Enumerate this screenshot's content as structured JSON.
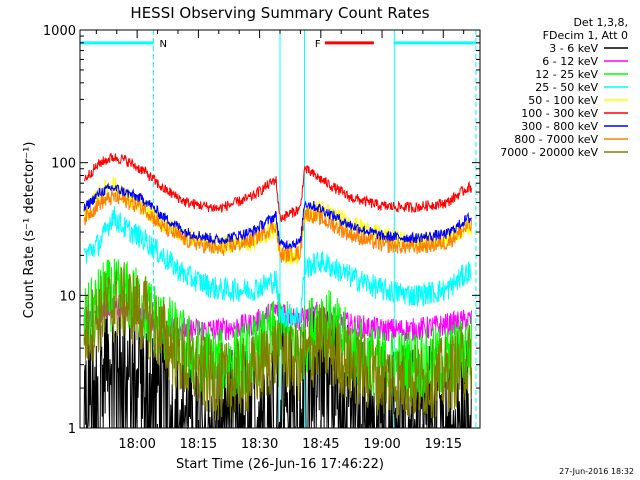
{
  "chart_data": {
    "type": "line",
    "title": "HESSI Observing Summary Count Rates",
    "xlabel": "Start Time (26-Jun-16 17:46:22)",
    "ylabel": "Count Rate (s⁻¹ detector⁻¹)",
    "yscale": "log",
    "ylim": [
      1,
      1000
    ],
    "xlim": [
      "17:46",
      "19:24"
    ],
    "y_ticks": [
      "1",
      "10",
      "100",
      "1000"
    ],
    "x_ticks": [
      "18:00",
      "18:15",
      "18:30",
      "18:45",
      "19:00",
      "19:15"
    ],
    "legend_header": [
      "Det 1,3,8,",
      "FDecim 1, Att 0"
    ],
    "legend_position": "right",
    "series": [
      {
        "name": "3 - 6 keV",
        "color": "#000000",
        "x": [
          "17:47",
          "17:52",
          "17:57",
          "18:02",
          "18:06",
          "18:12",
          "18:20",
          "18:28",
          "18:35",
          "18:40",
          "18:45",
          "18:52",
          "19:00",
          "19:08",
          "19:16",
          "19:21"
        ],
        "values": [
          2,
          3.5,
          4,
          3,
          2,
          1.5,
          1.3,
          1.8,
          2.5,
          2.2,
          3.5,
          2.2,
          1.6,
          1.4,
          1.6,
          2
        ]
      },
      {
        "name": "6 - 12 keV",
        "color": "#ff00ff",
        "x": [
          "17:47",
          "17:52",
          "17:57",
          "18:02",
          "18:06",
          "18:12",
          "18:20",
          "18:28",
          "18:35",
          "18:40",
          "18:45",
          "18:52",
          "19:00",
          "19:08",
          "19:16",
          "19:21"
        ],
        "values": [
          6,
          8,
          8.5,
          7,
          6,
          5.5,
          5.5,
          6,
          8,
          6.5,
          7.5,
          6,
          5.5,
          5.5,
          6,
          6.5
        ]
      },
      {
        "name": "12 - 25 keV",
        "color": "#00ff00",
        "x": [
          "17:47",
          "17:52",
          "17:57",
          "18:02",
          "18:06",
          "18:12",
          "18:20",
          "18:28",
          "18:35",
          "18:40",
          "18:45",
          "18:52",
          "19:00",
          "19:08",
          "19:16",
          "19:21"
        ],
        "values": [
          6,
          10,
          10,
          8,
          6,
          4,
          3,
          3.5,
          5.5,
          4,
          7,
          4,
          3,
          3,
          3.2,
          4
        ]
      },
      {
        "name": "25 - 50 keV",
        "color": "#00ffff",
        "x": [
          "17:47",
          "17:51",
          "17:54",
          "17:57",
          "18:02",
          "18:06",
          "18:12",
          "18:20",
          "18:28",
          "18:34",
          "18:35",
          "18:40",
          "18:41",
          "18:45",
          "18:52",
          "19:00",
          "19:08",
          "19:16",
          "19:21"
        ],
        "values": [
          20,
          25,
          40,
          32,
          26,
          20,
          14,
          11,
          11,
          13,
          7,
          7,
          16,
          18,
          14,
          11,
          10,
          11,
          15
        ]
      },
      {
        "name": "50 - 100 keV",
        "color": "#ffff00",
        "x": [
          "17:47",
          "17:51",
          "17:54",
          "17:57",
          "18:02",
          "18:06",
          "18:12",
          "18:20",
          "18:28",
          "18:34",
          "18:35",
          "18:40",
          "18:41",
          "18:45",
          "18:52",
          "19:00",
          "19:08",
          "19:16",
          "19:21"
        ],
        "values": [
          40,
          60,
          70,
          55,
          45,
          35,
          28,
          24,
          25,
          32,
          20,
          20,
          40,
          45,
          35,
          28,
          25,
          27,
          33
        ]
      },
      {
        "name": "100 - 300 keV",
        "color": "#ff0000",
        "x": [
          "17:47",
          "17:51",
          "17:54",
          "17:57",
          "18:02",
          "18:06",
          "18:12",
          "18:20",
          "18:28",
          "18:34",
          "18:35",
          "18:40",
          "18:41",
          "18:45",
          "18:52",
          "19:00",
          "19:08",
          "19:16",
          "19:21"
        ],
        "values": [
          75,
          100,
          110,
          105,
          85,
          65,
          50,
          45,
          55,
          75,
          38,
          45,
          90,
          75,
          55,
          47,
          46,
          50,
          65
        ]
      },
      {
        "name": "300 - 800 keV",
        "color": "#0000ff",
        "x": [
          "17:47",
          "17:51",
          "17:54",
          "17:57",
          "18:02",
          "18:06",
          "18:12",
          "18:20",
          "18:28",
          "18:34",
          "18:35",
          "18:40",
          "18:41",
          "18:45",
          "18:52",
          "19:00",
          "19:08",
          "19:16",
          "19:21"
        ],
        "values": [
          45,
          60,
          65,
          60,
          52,
          40,
          30,
          26,
          30,
          40,
          24,
          25,
          50,
          45,
          34,
          28,
          27,
          29,
          38
        ]
      },
      {
        "name": "800 - 7000 keV",
        "color": "#ff8000",
        "x": [
          "17:47",
          "17:51",
          "17:54",
          "17:57",
          "18:02",
          "18:06",
          "18:12",
          "18:20",
          "18:28",
          "18:34",
          "18:35",
          "18:40",
          "18:41",
          "18:45",
          "18:52",
          "19:00",
          "19:08",
          "19:16",
          "19:21"
        ],
        "values": [
          38,
          50,
          55,
          52,
          45,
          33,
          26,
          22,
          26,
          34,
          20,
          21,
          42,
          38,
          29,
          24,
          23,
          25,
          33
        ]
      },
      {
        "name": "7000 - 20000 keV",
        "color": "#808000",
        "x": [
          "17:47",
          "17:52",
          "17:57",
          "18:02",
          "18:06",
          "18:12",
          "18:20",
          "18:28",
          "18:35",
          "18:40",
          "18:45",
          "18:52",
          "19:00",
          "19:08",
          "19:16",
          "19:21"
        ],
        "values": [
          5,
          8,
          9,
          7,
          5,
          3,
          2.2,
          2.5,
          4,
          3,
          4.5,
          3,
          2.4,
          2.2,
          2.5,
          3.2
        ]
      }
    ],
    "markers": {
      "N": {
        "label": "N",
        "color": "#00ffff",
        "value": 800,
        "intervals": [
          [
            "17:46",
            "18:04"
          ],
          [
            "19:03",
            "19:23"
          ]
        ]
      },
      "F": {
        "label": "F",
        "color": "#ff0000",
        "value": 800,
        "intervals": [
          [
            "18:46",
            "18:58"
          ]
        ]
      }
    },
    "vertical_lines": {
      "solid": [
        "18:35",
        "18:41",
        "19:03"
      ],
      "dashed": [
        "18:04",
        "19:23"
      ]
    },
    "timestamp": "27-Jun-2016 18:32"
  }
}
